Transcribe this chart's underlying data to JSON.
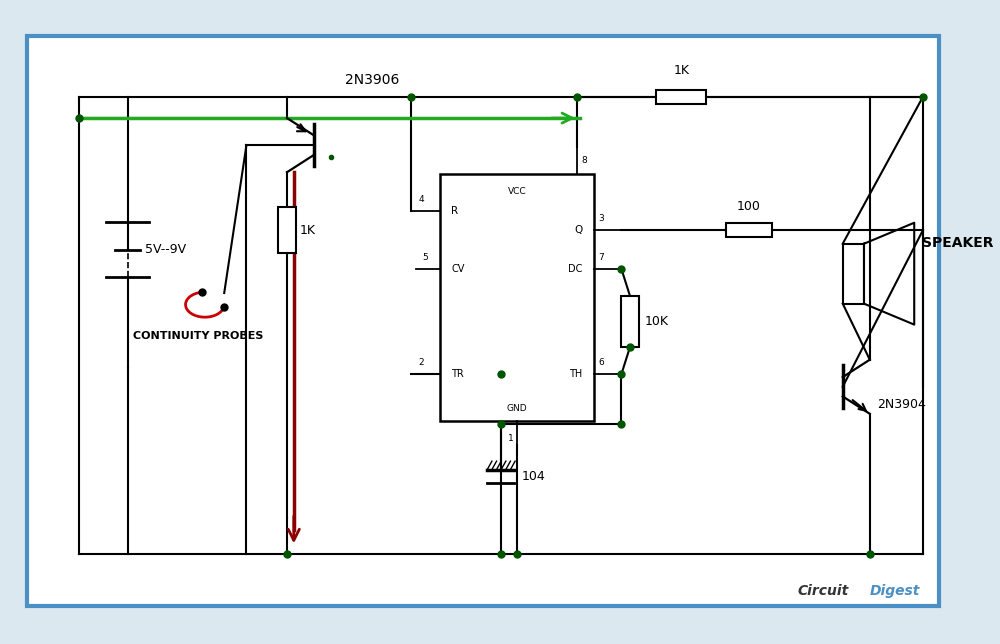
{
  "bg_color": "#dce8f0",
  "border_color": "#4a90c4",
  "circuit_bg": "#ffffff",
  "wire_color": "#000000",
  "green_wire_color": "#22aa22",
  "red_wire_color": "#cc0000",
  "darkred_wire_color": "#8b0000",
  "component_labels": {
    "transistor_pnp": "2N3906",
    "transistor_npn": "2N3904",
    "r1": "1K",
    "r2": "1K",
    "r3": "100",
    "r4": "10K",
    "cap": "104",
    "battery": "5V--9V",
    "speaker": "SPEAKER",
    "probes": "CONTINUITY PROBES"
  }
}
